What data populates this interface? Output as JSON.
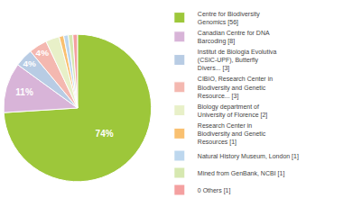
{
  "chart_data": {
    "type": "pie",
    "categories": [
      "Centre for Biodiversity\nGenomics [56]",
      "Canadian Centre for DNA\nBarcoding [8]",
      "Institut de Biologia Evolutiva\n(CSIC-UPF), Butterfly\nDivers... [3]",
      "CIBIO, Research Center in\nBiodiversity and Genetic\nResource... [3]",
      "Biology department of\nUniversity of Florence [2]",
      "Research Center in\nBiodiversity and Genetic\nResources [1]",
      "Natural History Museum, London [1]",
      "Mined from GenBank, NCBI [1]",
      "0 Others [1]"
    ],
    "values": [
      74,
      11,
      4,
      4,
      3,
      1,
      1,
      1,
      1
    ],
    "value_labels": [
      "74%",
      "11%",
      "4%",
      "4%",
      null,
      null,
      null,
      null,
      null
    ],
    "data_labels": true,
    "colors": [
      "#9dc73a",
      "#d8b4d8",
      "#b8cce4",
      "#f4b8b0",
      "#e8f0c8",
      "#f9c070",
      "#bdd7ee",
      "#d6e8b0",
      "#f4a0a0"
    ],
    "legend": "right"
  }
}
